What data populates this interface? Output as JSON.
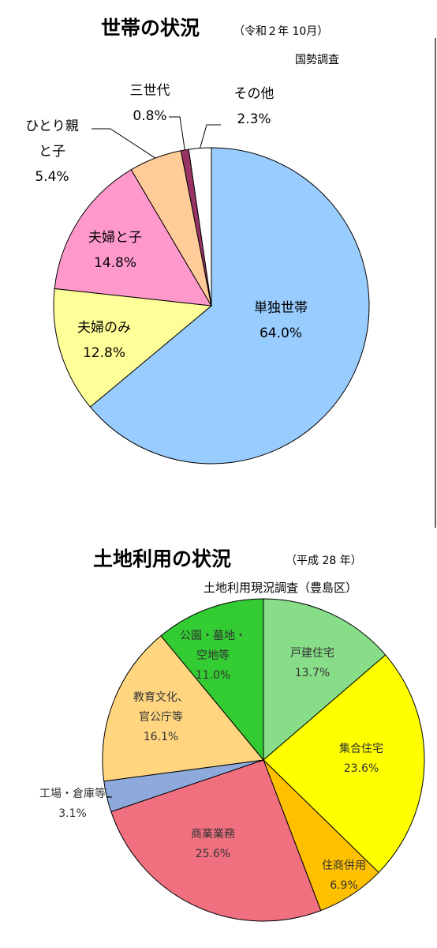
{
  "chart_data": [
    {
      "type": "pie",
      "title": "世帯の状況",
      "subtitle": "（令和２年 10月）",
      "source": "国勢調査",
      "slices": [
        {
          "label": "単独世帯",
          "value_text": "64.0%",
          "value": 64.0,
          "color": "#99CCFF"
        },
        {
          "label": "夫婦のみ",
          "value_text": "12.8%",
          "value": 12.8,
          "color": "#FFFF99"
        },
        {
          "label": "夫婦と子",
          "value_text": "14.8%",
          "value": 14.8,
          "color": "#FF99CC"
        },
        {
          "label": "ひとり親と子",
          "label_lines": [
            "ひとり親",
            "と子"
          ],
          "value_text": "5.4%",
          "value": 5.4,
          "color": "#FFCC99"
        },
        {
          "label": "三世代",
          "value_text": "0.8%",
          "value": 0.8,
          "color": "#993366"
        },
        {
          "label": "その他",
          "value_text": "2.3%",
          "value": 2.3,
          "color": "#FFFFFF"
        }
      ]
    },
    {
      "type": "pie",
      "title": "土地利用の状況",
      "subtitle": "（平成 28 年）",
      "source": "土地利用現況調査（豊島区）",
      "slices": [
        {
          "label": "戸建住宅",
          "value_text": "13.7%",
          "value": 13.7,
          "color": "#88DD88"
        },
        {
          "label": "集合住宅",
          "value_text": "23.6%",
          "value": 23.6,
          "color": "#FFFF00"
        },
        {
          "label": "住商併用",
          "value_text": "6.9%",
          "value": 6.9,
          "color": "#FFC000"
        },
        {
          "label": "商業業務",
          "value_text": "25.6%",
          "value": 25.6,
          "color": "#F07080"
        },
        {
          "label": "工場・倉庫等",
          "value_text": "3.1%",
          "value": 3.1,
          "color": "#8EA9DB"
        },
        {
          "label": "教育文化、官公庁等",
          "label_lines": [
            "教育文化、",
            "官公庁等"
          ],
          "value_text": "16.1%",
          "value": 16.1,
          "color": "#FFD580"
        },
        {
          "label": "公園・墓地・空地等",
          "label_lines": [
            "公園・墓地・",
            "空地等"
          ],
          "value_text": "11.0%",
          "value": 11.0,
          "color": "#33CC33"
        }
      ]
    }
  ]
}
